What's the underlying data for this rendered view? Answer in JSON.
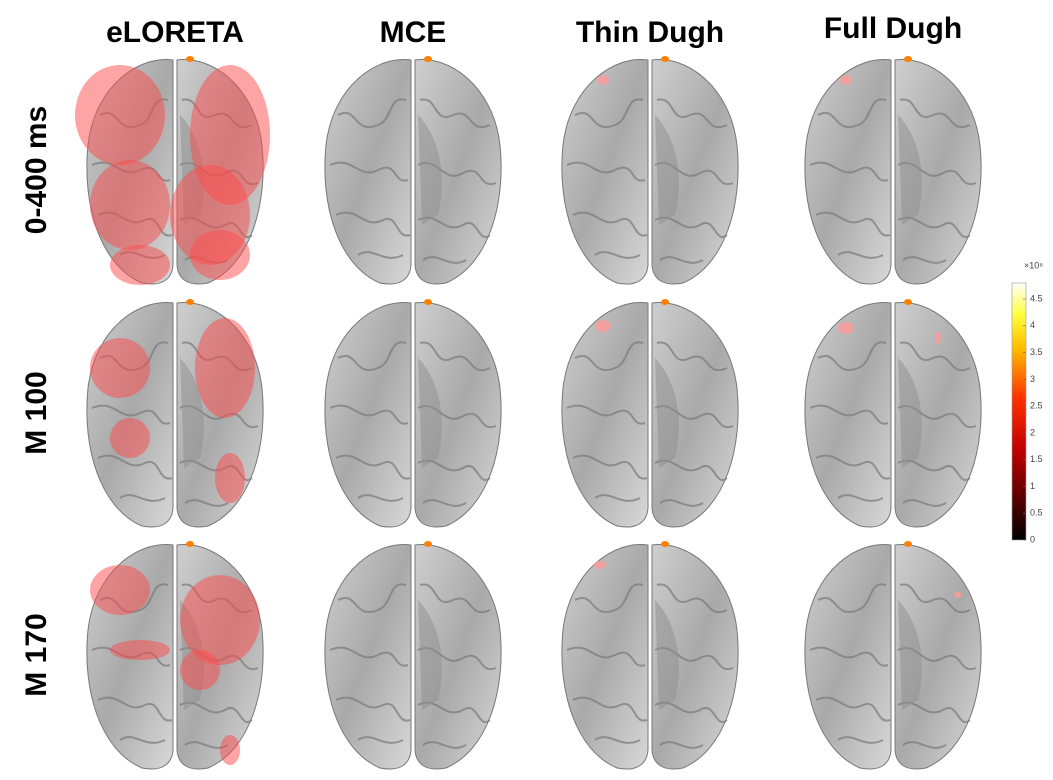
{
  "columns": [
    "eLORETA",
    "MCE",
    "Thin Dugh",
    "Full Dugh"
  ],
  "rows": [
    "0-400 ms",
    "M 100",
    "M 170"
  ],
  "colorbar": {
    "scale_label": "×10⁸",
    "lim": [
      0,
      4.8
    ],
    "ticks": [
      0,
      0.5,
      1,
      1.5,
      2,
      2.5,
      3,
      3.5,
      4,
      4.5
    ]
  }
}
